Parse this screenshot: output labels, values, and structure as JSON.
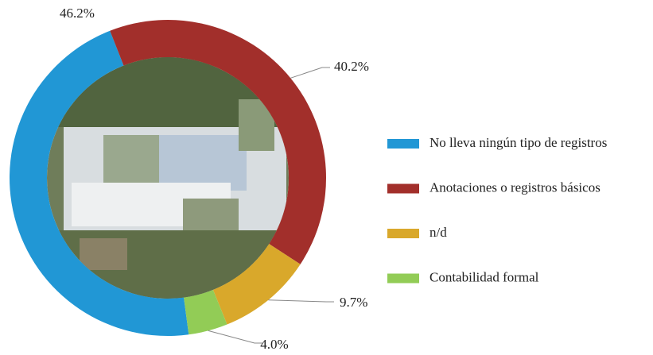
{
  "chart_data": {
    "type": "donut",
    "categories": [
      "No lleva ningún tipo de registros",
      "Anotaciones o registros básicos",
      "n/d",
      "Contabilidad formal"
    ],
    "values": [
      46.2,
      40.2,
      9.7,
      4.0
    ],
    "value_labels": [
      "46.2%",
      "40.2%",
      "9.7%",
      "4.0%"
    ],
    "colors": [
      "#2197d5",
      "#a22f2b",
      "#d9a82b",
      "#92cc56"
    ],
    "legend": "right"
  }
}
